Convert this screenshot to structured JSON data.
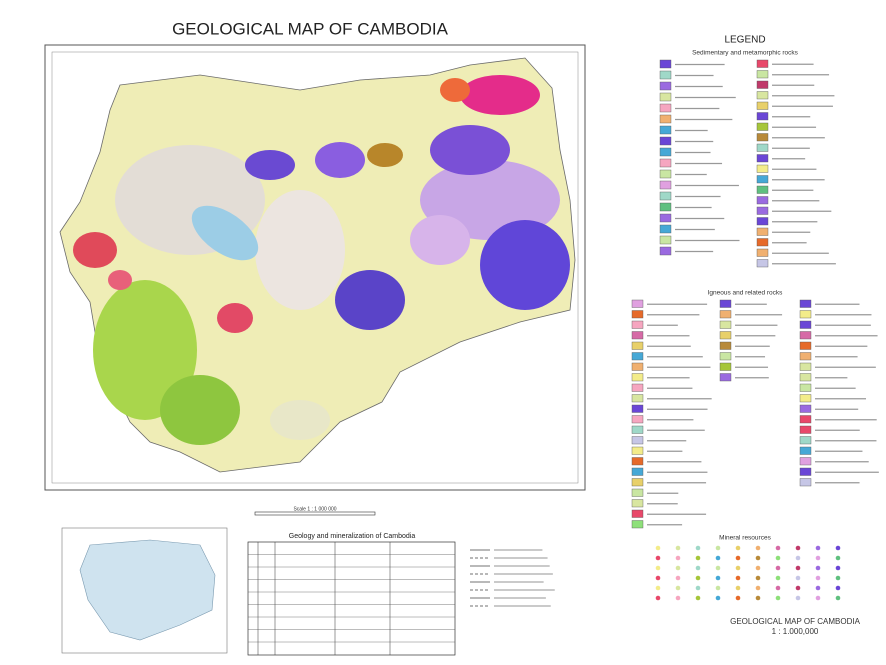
{
  "header": {
    "title": "GEOLOGICAL MAP OF CAMBODIA"
  },
  "map": {
    "scale": "Scale 1 : 1 000 000"
  },
  "legend": {
    "title": "LEGEND",
    "sections": [
      "Sedimentary and metamorphic rocks",
      "Igneous and related rocks",
      "Mineral resources"
    ]
  },
  "table": {
    "title": "Geology and mineralization of Cambodia"
  },
  "footer": {
    "title": "GEOLOGICAL MAP OF CAMBODIA",
    "scale": "1 : 1.000,000"
  }
}
